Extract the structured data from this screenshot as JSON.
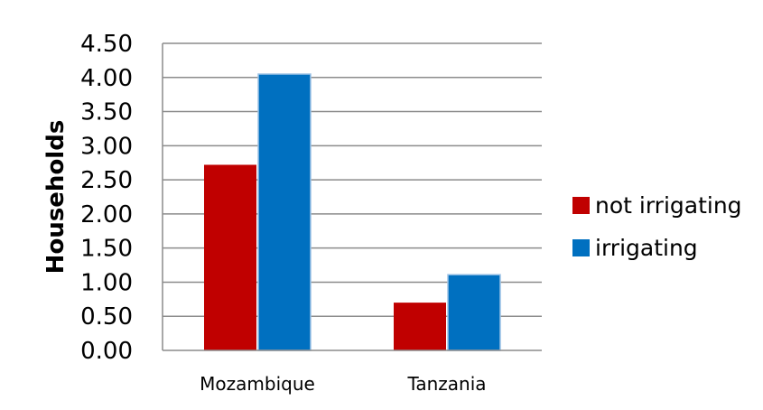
{
  "chart_data": {
    "type": "bar",
    "categories": [
      "Mozambique",
      "Tanzania"
    ],
    "series": [
      {
        "name": "not irrigating",
        "values": [
          2.72,
          0.7
        ],
        "color": "#c00000"
      },
      {
        "name": "irrigating",
        "values": [
          4.05,
          1.11
        ],
        "color": "#0070c0"
      }
    ],
    "ylabel": "Households",
    "xlabel": "",
    "ylim": [
      0,
      4.5
    ],
    "ytick_step": 0.5,
    "y_tick_labels": [
      "0.00",
      "0.50",
      "1.00",
      "1.50",
      "2.00",
      "2.50",
      "3.00",
      "3.50",
      "4.00",
      "4.50"
    ],
    "grid": true,
    "legend_position": "right"
  }
}
